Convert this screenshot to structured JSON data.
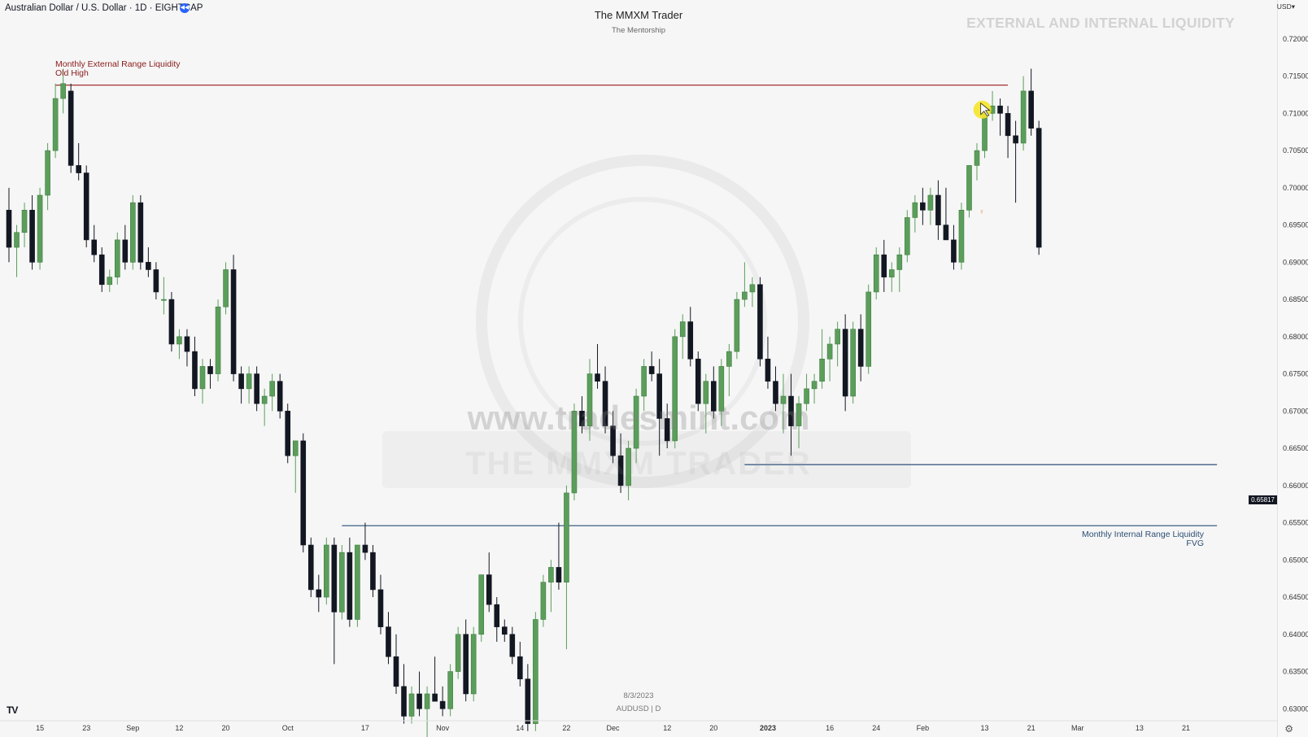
{
  "header": {
    "symbol": "Australian Dollar / U.S. Dollar · 1D · EIGHTCAP",
    "brand": "The MMXM Trader",
    "brand_sub": "The Mentorship",
    "headline": "EXTERNAL AND INTERNAL LIQUIDITY",
    "currency": "USD"
  },
  "footer": {
    "date": "8/3/2023",
    "symbol": "AUDUSD | D",
    "tv_logo": "TV"
  },
  "watermark": {
    "site": "www.tradesmint.com",
    "brand": "THE MMXM TRADER"
  },
  "colors": {
    "up": "#5b9e5b",
    "down": "#131722",
    "external_line": "#a32f2f",
    "internal_line": "#3d5f85",
    "cursor": "#f5e52a"
  },
  "chart_data": {
    "type": "candlestick",
    "instrument": "AUDUSD",
    "timeframe": "1D",
    "ylim": [
      0.6285,
      0.7225
    ],
    "y_ticks": [
      "0.72000",
      "0.71500",
      "0.71000",
      "0.70500",
      "0.70000",
      "0.69500",
      "0.69000",
      "0.68500",
      "0.68000",
      "0.67500",
      "0.67000",
      "0.66500",
      "0.66000",
      "0.65500",
      "0.65000",
      "0.64500",
      "0.64000",
      "0.63500",
      "0.63000"
    ],
    "x_ticks": [
      {
        "i": 4,
        "label": "15"
      },
      {
        "i": 10,
        "label": "23"
      },
      {
        "i": 16,
        "label": "Sep"
      },
      {
        "i": 22,
        "label": "12"
      },
      {
        "i": 28,
        "label": "20"
      },
      {
        "i": 36,
        "label": "Oct"
      },
      {
        "i": 46,
        "label": "17"
      },
      {
        "i": 56,
        "label": "Nov"
      },
      {
        "i": 66,
        "label": "14"
      },
      {
        "i": 72,
        "label": "22"
      },
      {
        "i": 78,
        "label": "Dec"
      },
      {
        "i": 85,
        "label": "12"
      },
      {
        "i": 91,
        "label": "20"
      },
      {
        "i": 98,
        "label": "2023"
      },
      {
        "i": 106,
        "label": "16"
      },
      {
        "i": 112,
        "label": "24"
      },
      {
        "i": 118,
        "label": "Feb"
      },
      {
        "i": 126,
        "label": "13"
      },
      {
        "i": 132,
        "label": "21"
      },
      {
        "i": 138,
        "label": "Mar"
      },
      {
        "i": 146,
        "label": "13"
      },
      {
        "i": 152,
        "label": "21"
      }
    ],
    "last_price": "0.65817",
    "levels": [
      {
        "name": "Monthly External Range Liquidity",
        "sub": "Old High",
        "price": 0.7138,
        "from": 6,
        "to": 129,
        "color": "external"
      },
      {
        "name": "Monthly Internal Range Liquidity",
        "sub": "FVG",
        "price": 0.6546,
        "from": 43,
        "to": 156,
        "color": "internal"
      },
      {
        "name": "",
        "sub": "",
        "price": 0.6628,
        "from": 95,
        "to": 156,
        "color": "internal"
      }
    ],
    "candles": [
      {
        "o": 0.697,
        "h": 0.7,
        "l": 0.69,
        "c": 0.692
      },
      {
        "o": 0.692,
        "h": 0.695,
        "l": 0.688,
        "c": 0.694
      },
      {
        "o": 0.694,
        "h": 0.698,
        "l": 0.692,
        "c": 0.697
      },
      {
        "o": 0.697,
        "h": 0.699,
        "l": 0.689,
        "c": 0.69
      },
      {
        "o": 0.69,
        "h": 0.7,
        "l": 0.689,
        "c": 0.699
      },
      {
        "o": 0.699,
        "h": 0.706,
        "l": 0.697,
        "c": 0.705
      },
      {
        "o": 0.705,
        "h": 0.714,
        "l": 0.704,
        "c": 0.712
      },
      {
        "o": 0.712,
        "h": 0.716,
        "l": 0.71,
        "c": 0.714
      },
      {
        "o": 0.713,
        "h": 0.714,
        "l": 0.702,
        "c": 0.703
      },
      {
        "o": 0.703,
        "h": 0.706,
        "l": 0.701,
        "c": 0.702
      },
      {
        "o": 0.702,
        "h": 0.703,
        "l": 0.692,
        "c": 0.693
      },
      {
        "o": 0.693,
        "h": 0.695,
        "l": 0.69,
        "c": 0.691
      },
      {
        "o": 0.691,
        "h": 0.692,
        "l": 0.686,
        "c": 0.687
      },
      {
        "o": 0.687,
        "h": 0.689,
        "l": 0.686,
        "c": 0.688
      },
      {
        "o": 0.688,
        "h": 0.694,
        "l": 0.687,
        "c": 0.693
      },
      {
        "o": 0.693,
        "h": 0.695,
        "l": 0.689,
        "c": 0.69
      },
      {
        "o": 0.69,
        "h": 0.699,
        "l": 0.689,
        "c": 0.698
      },
      {
        "o": 0.698,
        "h": 0.699,
        "l": 0.689,
        "c": 0.69
      },
      {
        "o": 0.69,
        "h": 0.692,
        "l": 0.688,
        "c": 0.689
      },
      {
        "o": 0.689,
        "h": 0.69,
        "l": 0.685,
        "c": 0.686
      },
      {
        "o": 0.685,
        "h": 0.688,
        "l": 0.683,
        "c": 0.685
      },
      {
        "o": 0.685,
        "h": 0.686,
        "l": 0.678,
        "c": 0.679
      },
      {
        "o": 0.679,
        "h": 0.681,
        "l": 0.677,
        "c": 0.68
      },
      {
        "o": 0.68,
        "h": 0.681,
        "l": 0.676,
        "c": 0.678
      },
      {
        "o": 0.678,
        "h": 0.68,
        "l": 0.672,
        "c": 0.673
      },
      {
        "o": 0.673,
        "h": 0.677,
        "l": 0.671,
        "c": 0.676
      },
      {
        "o": 0.676,
        "h": 0.677,
        "l": 0.673,
        "c": 0.675
      },
      {
        "o": 0.675,
        "h": 0.685,
        "l": 0.674,
        "c": 0.684
      },
      {
        "o": 0.684,
        "h": 0.69,
        "l": 0.683,
        "c": 0.689
      },
      {
        "o": 0.689,
        "h": 0.691,
        "l": 0.674,
        "c": 0.675
      },
      {
        "o": 0.675,
        "h": 0.676,
        "l": 0.671,
        "c": 0.673
      },
      {
        "o": 0.673,
        "h": 0.676,
        "l": 0.671,
        "c": 0.675
      },
      {
        "o": 0.675,
        "h": 0.676,
        "l": 0.67,
        "c": 0.671
      },
      {
        "o": 0.671,
        "h": 0.673,
        "l": 0.668,
        "c": 0.672
      },
      {
        "o": 0.672,
        "h": 0.675,
        "l": 0.67,
        "c": 0.674
      },
      {
        "o": 0.674,
        "h": 0.675,
        "l": 0.669,
        "c": 0.67
      },
      {
        "o": 0.67,
        "h": 0.671,
        "l": 0.663,
        "c": 0.664
      },
      {
        "o": 0.664,
        "h": 0.666,
        "l": 0.659,
        "c": 0.666
      },
      {
        "o": 0.666,
        "h": 0.667,
        "l": 0.651,
        "c": 0.652
      },
      {
        "o": 0.652,
        "h": 0.653,
        "l": 0.645,
        "c": 0.646
      },
      {
        "o": 0.646,
        "h": 0.648,
        "l": 0.643,
        "c": 0.645
      },
      {
        "o": 0.645,
        "h": 0.653,
        "l": 0.644,
        "c": 0.652
      },
      {
        "o": 0.652,
        "h": 0.653,
        "l": 0.636,
        "c": 0.643
      },
      {
        "o": 0.643,
        "h": 0.652,
        "l": 0.642,
        "c": 0.651
      },
      {
        "o": 0.651,
        "h": 0.653,
        "l": 0.641,
        "c": 0.642
      },
      {
        "o": 0.642,
        "h": 0.652,
        "l": 0.641,
        "c": 0.652
      },
      {
        "o": 0.652,
        "h": 0.655,
        "l": 0.65,
        "c": 0.651
      },
      {
        "o": 0.651,
        "h": 0.652,
        "l": 0.645,
        "c": 0.646
      },
      {
        "o": 0.646,
        "h": 0.648,
        "l": 0.64,
        "c": 0.641
      },
      {
        "o": 0.641,
        "h": 0.643,
        "l": 0.636,
        "c": 0.637
      },
      {
        "o": 0.637,
        "h": 0.64,
        "l": 0.632,
        "c": 0.633
      },
      {
        "o": 0.633,
        "h": 0.636,
        "l": 0.628,
        "c": 0.629
      },
      {
        "o": 0.629,
        "h": 0.633,
        "l": 0.628,
        "c": 0.632
      },
      {
        "o": 0.632,
        "h": 0.635,
        "l": 0.629,
        "c": 0.63
      },
      {
        "o": 0.63,
        "h": 0.633,
        "l": 0.626,
        "c": 0.632
      },
      {
        "o": 0.632,
        "h": 0.637,
        "l": 0.631,
        "c": 0.631
      },
      {
        "o": 0.631,
        "h": 0.633,
        "l": 0.629,
        "c": 0.63
      },
      {
        "o": 0.63,
        "h": 0.636,
        "l": 0.629,
        "c": 0.635
      },
      {
        "o": 0.635,
        "h": 0.641,
        "l": 0.634,
        "c": 0.64
      },
      {
        "o": 0.64,
        "h": 0.642,
        "l": 0.631,
        "c": 0.632
      },
      {
        "o": 0.632,
        "h": 0.641,
        "l": 0.631,
        "c": 0.64
      },
      {
        "o": 0.64,
        "h": 0.648,
        "l": 0.639,
        "c": 0.648
      },
      {
        "o": 0.648,
        "h": 0.651,
        "l": 0.643,
        "c": 0.644
      },
      {
        "o": 0.644,
        "h": 0.645,
        "l": 0.639,
        "c": 0.641
      },
      {
        "o": 0.641,
        "h": 0.642,
        "l": 0.639,
        "c": 0.64
      },
      {
        "o": 0.64,
        "h": 0.641,
        "l": 0.636,
        "c": 0.637
      },
      {
        "o": 0.637,
        "h": 0.639,
        "l": 0.633,
        "c": 0.634
      },
      {
        "o": 0.634,
        "h": 0.636,
        "l": 0.627,
        "c": 0.628
      },
      {
        "o": 0.628,
        "h": 0.643,
        "l": 0.627,
        "c": 0.642
      },
      {
        "o": 0.642,
        "h": 0.648,
        "l": 0.641,
        "c": 0.647
      },
      {
        "o": 0.647,
        "h": 0.65,
        "l": 0.643,
        "c": 0.649
      },
      {
        "o": 0.649,
        "h": 0.655,
        "l": 0.646,
        "c": 0.647
      },
      {
        "o": 0.647,
        "h": 0.66,
        "l": 0.638,
        "c": 0.659
      },
      {
        "o": 0.659,
        "h": 0.671,
        "l": 0.658,
        "c": 0.67
      },
      {
        "o": 0.67,
        "h": 0.672,
        "l": 0.667,
        "c": 0.668
      },
      {
        "o": 0.668,
        "h": 0.677,
        "l": 0.666,
        "c": 0.675
      },
      {
        "o": 0.675,
        "h": 0.679,
        "l": 0.673,
        "c": 0.674
      },
      {
        "o": 0.674,
        "h": 0.676,
        "l": 0.667,
        "c": 0.668
      },
      {
        "o": 0.668,
        "h": 0.67,
        "l": 0.663,
        "c": 0.664
      },
      {
        "o": 0.664,
        "h": 0.667,
        "l": 0.659,
        "c": 0.66
      },
      {
        "o": 0.66,
        "h": 0.666,
        "l": 0.658,
        "c": 0.665
      },
      {
        "o": 0.665,
        "h": 0.673,
        "l": 0.663,
        "c": 0.672
      },
      {
        "o": 0.672,
        "h": 0.677,
        "l": 0.67,
        "c": 0.676
      },
      {
        "o": 0.676,
        "h": 0.678,
        "l": 0.674,
        "c": 0.675
      },
      {
        "o": 0.675,
        "h": 0.677,
        "l": 0.664,
        "c": 0.669
      },
      {
        "o": 0.669,
        "h": 0.671,
        "l": 0.665,
        "c": 0.666
      },
      {
        "o": 0.666,
        "h": 0.681,
        "l": 0.665,
        "c": 0.68
      },
      {
        "o": 0.68,
        "h": 0.683,
        "l": 0.677,
        "c": 0.682
      },
      {
        "o": 0.682,
        "h": 0.684,
        "l": 0.676,
        "c": 0.677
      },
      {
        "o": 0.677,
        "h": 0.678,
        "l": 0.67,
        "c": 0.671
      },
      {
        "o": 0.671,
        "h": 0.675,
        "l": 0.667,
        "c": 0.674
      },
      {
        "o": 0.674,
        "h": 0.676,
        "l": 0.669,
        "c": 0.67
      },
      {
        "o": 0.67,
        "h": 0.677,
        "l": 0.668,
        "c": 0.676
      },
      {
        "o": 0.676,
        "h": 0.679,
        "l": 0.672,
        "c": 0.678
      },
      {
        "o": 0.678,
        "h": 0.686,
        "l": 0.677,
        "c": 0.685
      },
      {
        "o": 0.685,
        "h": 0.69,
        "l": 0.684,
        "c": 0.686
      },
      {
        "o": 0.686,
        "h": 0.688,
        "l": 0.684,
        "c": 0.687
      },
      {
        "o": 0.687,
        "h": 0.688,
        "l": 0.676,
        "c": 0.677
      },
      {
        "o": 0.677,
        "h": 0.68,
        "l": 0.673,
        "c": 0.674
      },
      {
        "o": 0.674,
        "h": 0.676,
        "l": 0.67,
        "c": 0.671
      },
      {
        "o": 0.671,
        "h": 0.675,
        "l": 0.667,
        "c": 0.672
      },
      {
        "o": 0.672,
        "h": 0.675,
        "l": 0.664,
        "c": 0.668
      },
      {
        "o": 0.668,
        "h": 0.672,
        "l": 0.665,
        "c": 0.671
      },
      {
        "o": 0.671,
        "h": 0.675,
        "l": 0.67,
        "c": 0.673
      },
      {
        "o": 0.673,
        "h": 0.675,
        "l": 0.671,
        "c": 0.674
      },
      {
        "o": 0.674,
        "h": 0.681,
        "l": 0.673,
        "c": 0.677
      },
      {
        "o": 0.677,
        "h": 0.68,
        "l": 0.674,
        "c": 0.679
      },
      {
        "o": 0.679,
        "h": 0.682,
        "l": 0.676,
        "c": 0.681
      },
      {
        "o": 0.681,
        "h": 0.683,
        "l": 0.67,
        "c": 0.672
      },
      {
        "o": 0.672,
        "h": 0.682,
        "l": 0.671,
        "c": 0.681
      },
      {
        "o": 0.681,
        "h": 0.683,
        "l": 0.674,
        "c": 0.676
      },
      {
        "o": 0.676,
        "h": 0.687,
        "l": 0.675,
        "c": 0.686
      },
      {
        "o": 0.686,
        "h": 0.692,
        "l": 0.685,
        "c": 0.691
      },
      {
        "o": 0.691,
        "h": 0.693,
        "l": 0.686,
        "c": 0.688
      },
      {
        "o": 0.688,
        "h": 0.69,
        "l": 0.686,
        "c": 0.689
      },
      {
        "o": 0.689,
        "h": 0.692,
        "l": 0.686,
        "c": 0.691
      },
      {
        "o": 0.691,
        "h": 0.697,
        "l": 0.69,
        "c": 0.696
      },
      {
        "o": 0.696,
        "h": 0.699,
        "l": 0.694,
        "c": 0.698
      },
      {
        "o": 0.698,
        "h": 0.7,
        "l": 0.695,
        "c": 0.697
      },
      {
        "o": 0.697,
        "h": 0.7,
        "l": 0.695,
        "c": 0.699
      },
      {
        "o": 0.699,
        "h": 0.701,
        "l": 0.693,
        "c": 0.695
      },
      {
        "o": 0.695,
        "h": 0.7,
        "l": 0.693,
        "c": 0.693
      },
      {
        "o": 0.693,
        "h": 0.695,
        "l": 0.689,
        "c": 0.69
      },
      {
        "o": 0.69,
        "h": 0.698,
        "l": 0.689,
        "c": 0.697
      },
      {
        "o": 0.697,
        "h": 0.703,
        "l": 0.696,
        "c": 0.703
      },
      {
        "o": 0.703,
        "h": 0.706,
        "l": 0.701,
        "c": 0.705
      },
      {
        "o": 0.705,
        "h": 0.711,
        "l": 0.704,
        "c": 0.71
      },
      {
        "o": 0.71,
        "h": 0.713,
        "l": 0.709,
        "c": 0.711
      },
      {
        "o": 0.711,
        "h": 0.712,
        "l": 0.707,
        "c": 0.71
      },
      {
        "o": 0.71,
        "h": 0.711,
        "l": 0.704,
        "c": 0.707
      },
      {
        "o": 0.707,
        "h": 0.709,
        "l": 0.698,
        "c": 0.706
      },
      {
        "o": 0.706,
        "h": 0.715,
        "l": 0.705,
        "c": 0.713
      },
      {
        "o": 0.713,
        "h": 0.716,
        "l": 0.707,
        "c": 0.708
      },
      {
        "o": 0.708,
        "h": 0.709,
        "l": 0.691,
        "c": 0.692
      }
    ]
  }
}
